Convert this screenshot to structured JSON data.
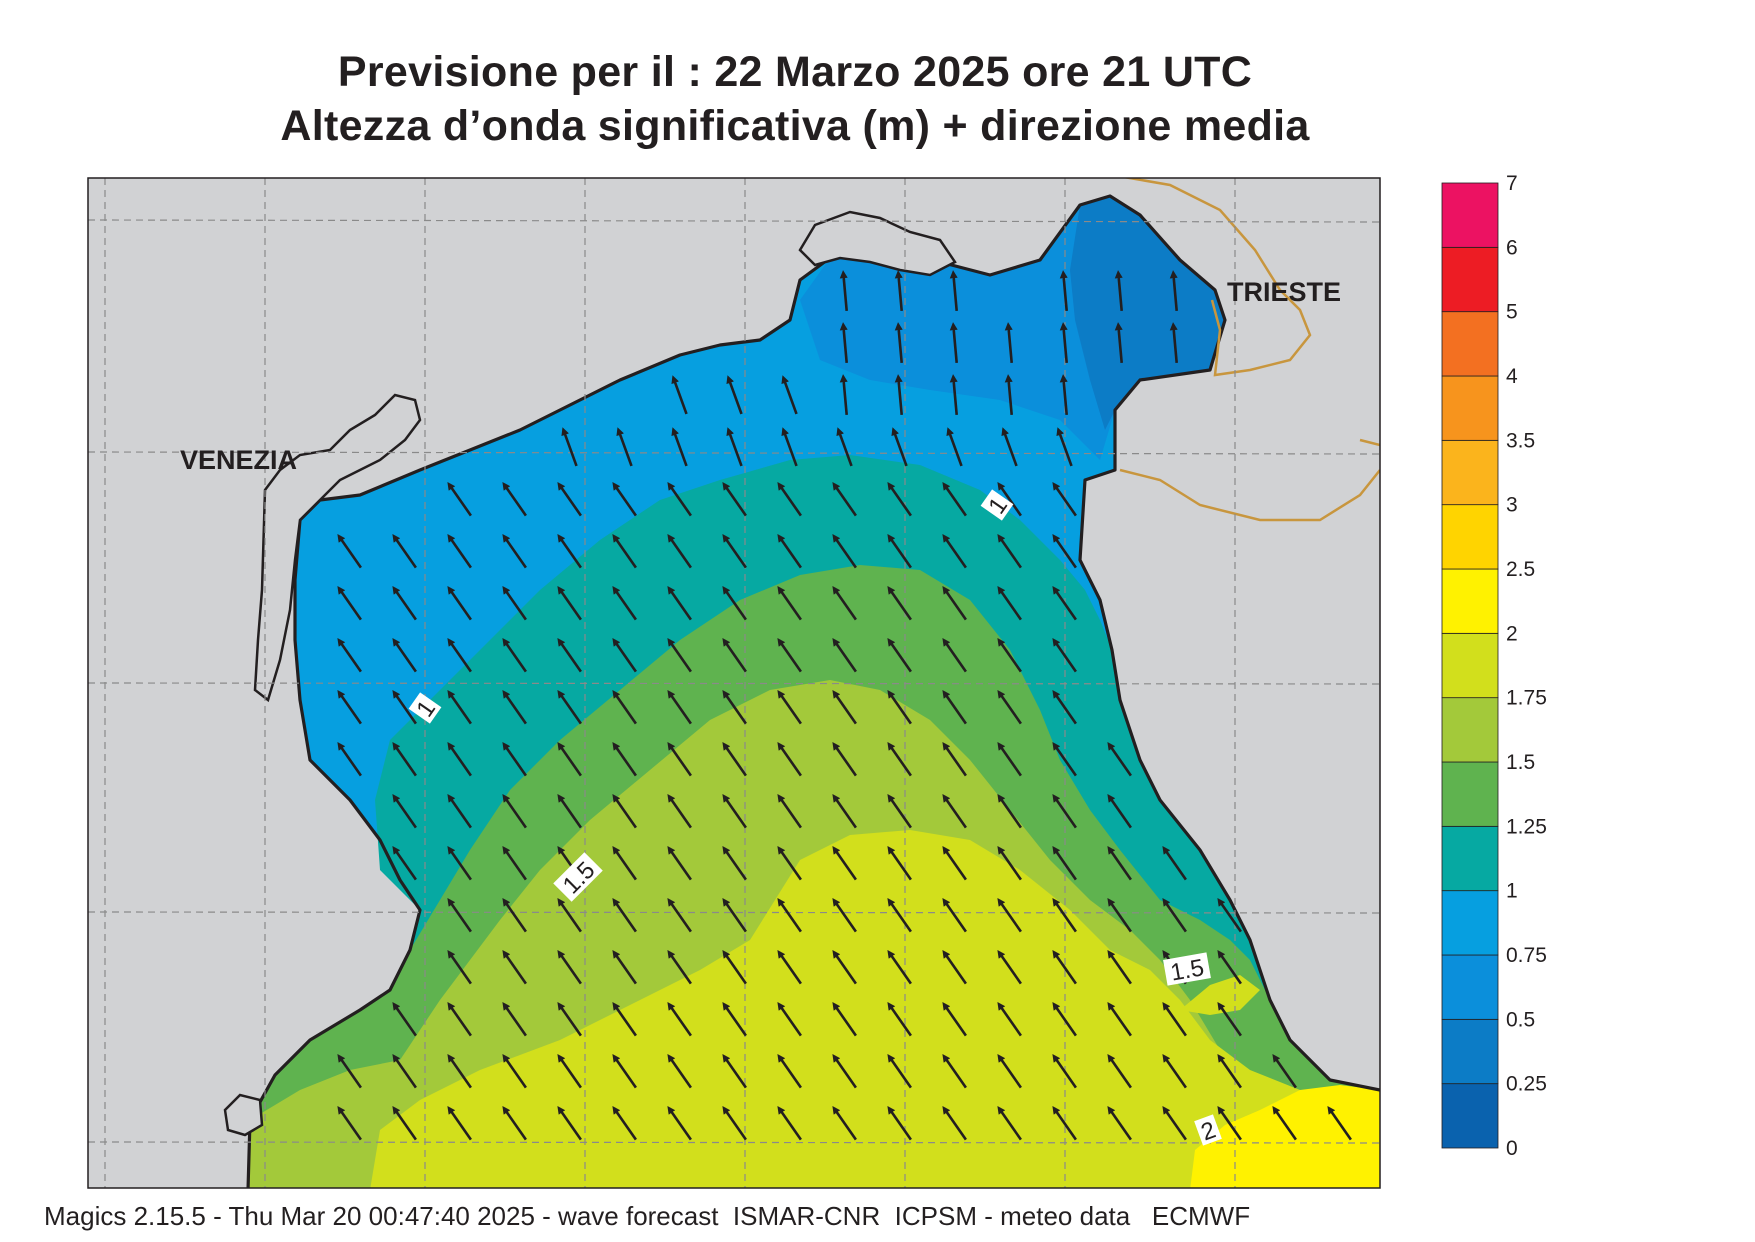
{
  "title_line1": "Previsione per il  :  22   Marzo   2025   ore 21 UTC",
  "title_line2": "Altezza d’onda significativa (m) + direzione media",
  "footer": "Magics 2.15.5 - Thu Mar 20 00:47:40 2025 - wave forecast  ISMAR-CNR  ICPSM - meteo data   ECMWF",
  "city_labels": {
    "venezia": "VENEZIA",
    "trieste": "TRIESTE"
  },
  "contour_labels": [
    "1",
    "1",
    "1.5",
    "1.5",
    "2"
  ],
  "colorbar": {
    "ticks": [
      "0",
      "0.25",
      "0.5",
      "0.75",
      "1",
      "1.25",
      "1.5",
      "1.75",
      "2",
      "2.5",
      "3",
      "3.5",
      "4",
      "5",
      "6",
      "7"
    ],
    "colors": [
      "#0a62ae",
      "#0c7cc6",
      "#0b8fdb",
      "#069fe0",
      "#06a9a2",
      "#5fb34f",
      "#a3c93a",
      "#d2df1c",
      "#fff200",
      "#ffd400",
      "#fbb41c",
      "#f7941d",
      "#f37021",
      "#ed1c24",
      "#ec1262"
    ]
  },
  "colors": {
    "land": "#d1d2d4",
    "coast": "#231f20",
    "border": "#c8963e",
    "grid": "#8a8a8a",
    "arrow": "#231f20"
  }
}
